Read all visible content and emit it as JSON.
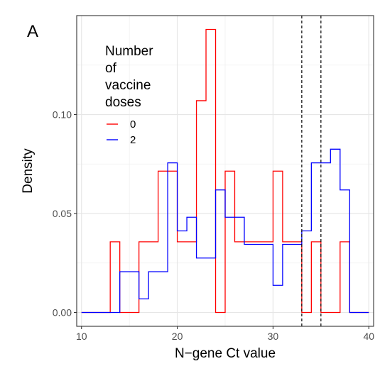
{
  "chart_data": {
    "type": "histogram",
    "panel_label": "A",
    "xlabel": "N−gene Ct value",
    "ylabel": "Density",
    "xlim": [
      9.5,
      40.5
    ],
    "ylim": [
      -0.007,
      0.15
    ],
    "x_ticks": [
      10,
      20,
      30,
      40
    ],
    "x_tick_labels": [
      "10",
      "20",
      "30",
      "40"
    ],
    "y_ticks": [
      0.0,
      0.05,
      0.1
    ],
    "y_tick_labels": [
      "0.00",
      "0.05",
      "0.10"
    ],
    "grid": true,
    "legend": {
      "title_lines": [
        "Number",
        "of",
        "vaccine",
        "doses"
      ],
      "placement": "top-left-inside"
    },
    "series": [
      {
        "name": "0",
        "color": "#ff0000",
        "bin_edges": [
          10,
          13,
          14,
          16,
          18,
          20,
          21,
          22,
          23,
          24,
          25,
          26,
          27,
          30,
          31,
          32,
          33,
          34,
          35,
          37,
          38,
          40
        ],
        "densities": [
          0,
          0.0357,
          0,
          0.0357,
          0.0714,
          0.0357,
          0.0357,
          0.107,
          0.143,
          0,
          0.0714,
          0.0357,
          0.0357,
          0.0714,
          0.0357,
          0.0357,
          0,
          0.0357,
          0,
          0.0357,
          0
        ]
      },
      {
        "name": "2",
        "color": "#0000ff",
        "bin_edges": [
          10,
          14,
          16,
          17,
          19,
          20,
          21,
          22,
          24,
          25,
          27,
          30,
          31,
          33,
          34,
          36,
          37,
          38,
          40
        ],
        "densities": [
          0,
          0.0206,
          0.0069,
          0.0206,
          0.0756,
          0.0412,
          0.0481,
          0.0275,
          0.0619,
          0.0481,
          0.0344,
          0.0137,
          0.0344,
          0.0412,
          0.0756,
          0.0825,
          0.0619,
          0
        ]
      }
    ],
    "vlines": {
      "style": "dashed",
      "color": "#000000",
      "x": [
        33,
        35
      ]
    }
  }
}
